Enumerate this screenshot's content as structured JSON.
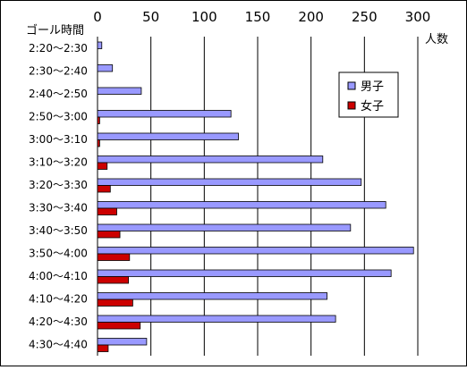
{
  "chart_data": {
    "type": "bar",
    "orientation": "horizontal",
    "title": "",
    "ylabel": "ゴール時間",
    "xlabel": "人数",
    "xlim": [
      0,
      300
    ],
    "xticks": [
      0,
      50,
      100,
      150,
      200,
      250,
      300
    ],
    "grid": "vertical",
    "legend_position": "right",
    "categories": [
      "2:20～2:30",
      "2:30～2:40",
      "2:40～2:50",
      "2:50～3:00",
      "3:00～3:10",
      "3:10～3:20",
      "3:20～3:30",
      "3:30～3:40",
      "3:40～3:50",
      "3:50～4:00",
      "4:00～4:10",
      "4:10～4:20",
      "4:20～4:30",
      "4:30～4:40"
    ],
    "series": [
      {
        "name": "男子",
        "color": "#9999ff",
        "values": [
          4,
          14,
          41,
          125,
          132,
          211,
          247,
          270,
          237,
          296,
          275,
          215,
          223,
          46
        ]
      },
      {
        "name": "女子",
        "color": "#cc0000",
        "values": [
          0,
          0,
          0,
          2,
          2,
          9,
          12,
          18,
          21,
          30,
          29,
          33,
          40,
          10
        ]
      }
    ]
  }
}
